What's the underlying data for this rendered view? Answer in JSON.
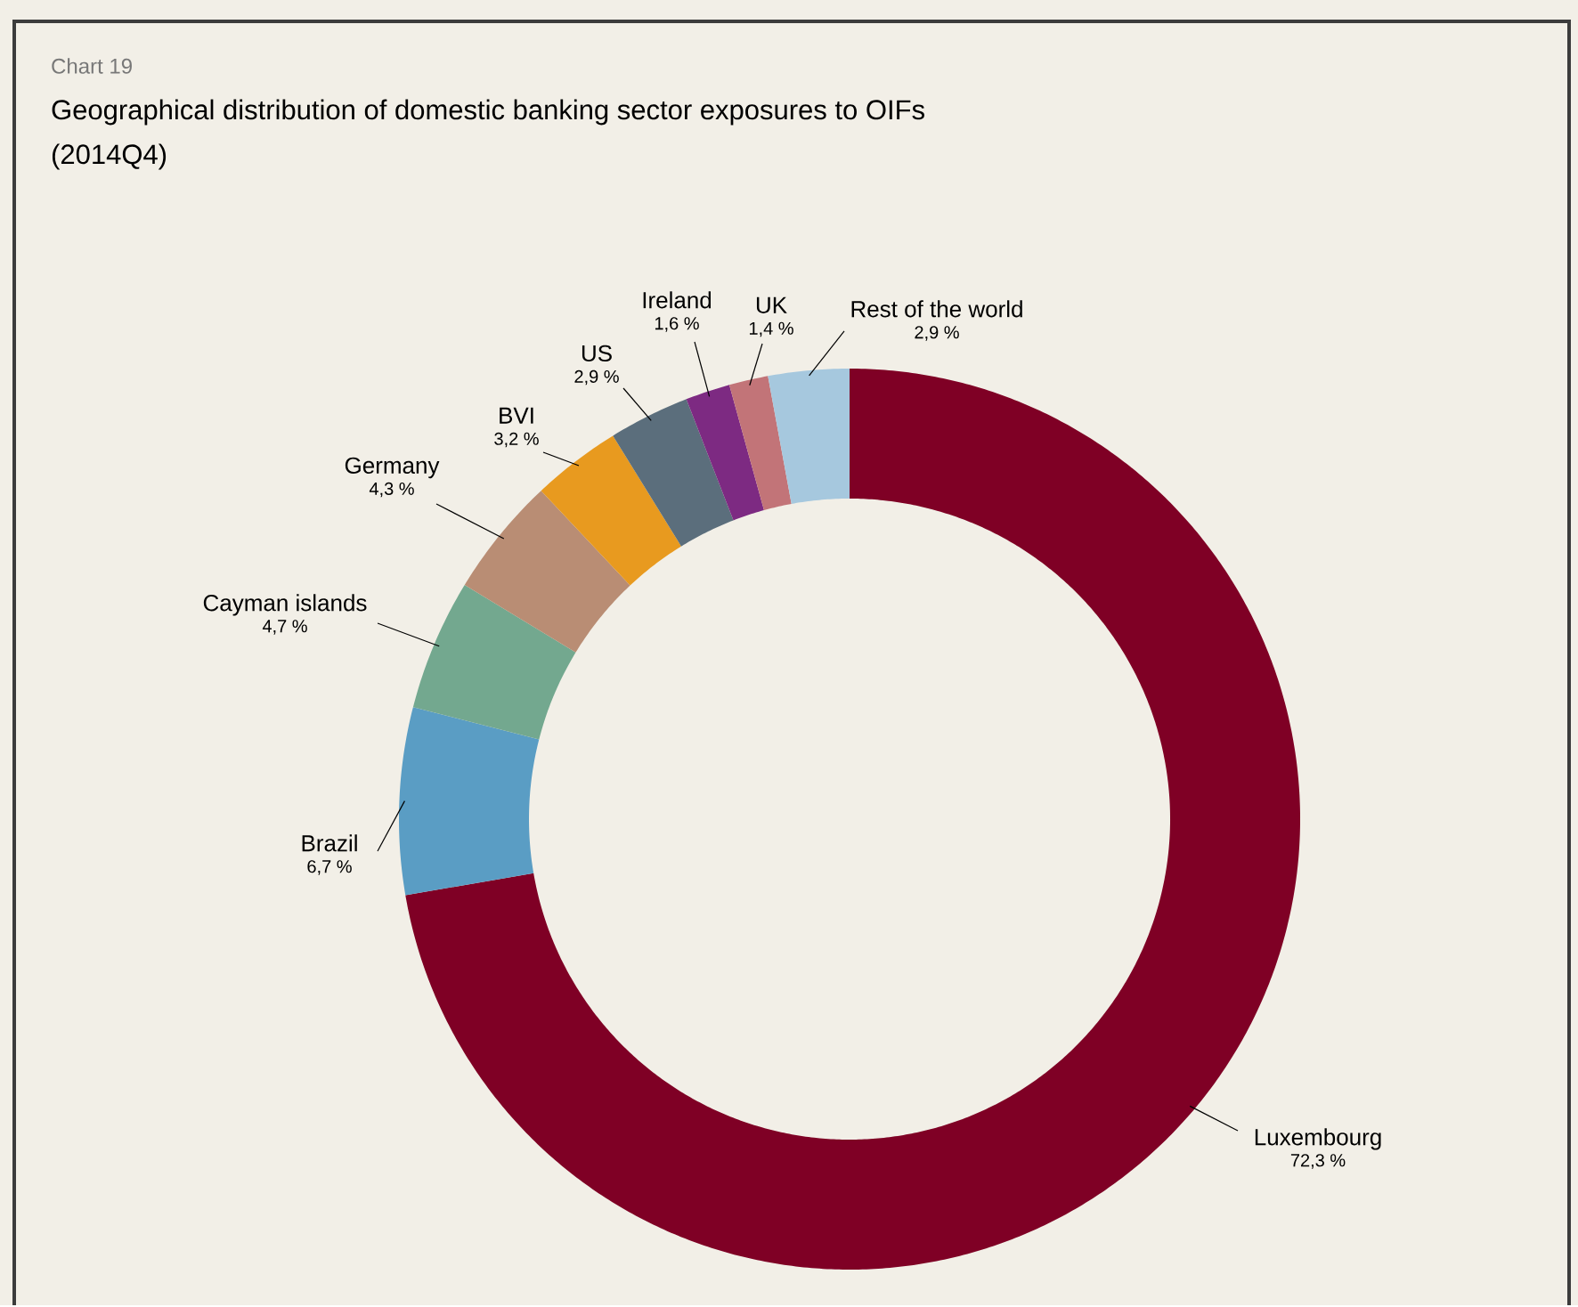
{
  "chart_data": {
    "type": "donut",
    "title": "Geographical distribution of domestic banking sector exposures to OIFs",
    "subtitle": "(2014Q4)",
    "annotations": [
      "Chart 19"
    ],
    "categories": [
      "Luxembourg",
      "Brazil",
      "Cayman islands",
      "Germany",
      "BVI",
      "US",
      "Ireland",
      "UK",
      "Rest of the world"
    ],
    "values": [
      72.3,
      6.7,
      4.7,
      4.3,
      3.2,
      2.9,
      1.6,
      1.4,
      2.9
    ],
    "value_labels": [
      "72,3 %",
      "6,7 %",
      "4,7 %",
      "4,3 %",
      "3,2 %",
      "2,9 %",
      "1,6 %",
      "1,4 %",
      "2,9 %"
    ],
    "colors": [
      "#7f0025",
      "#5a9dc4",
      "#73a88f",
      "#b98d74",
      "#e89a1f",
      "#5b6e7c",
      "#7d2a82",
      "#c27478",
      "#a6c8de"
    ]
  }
}
